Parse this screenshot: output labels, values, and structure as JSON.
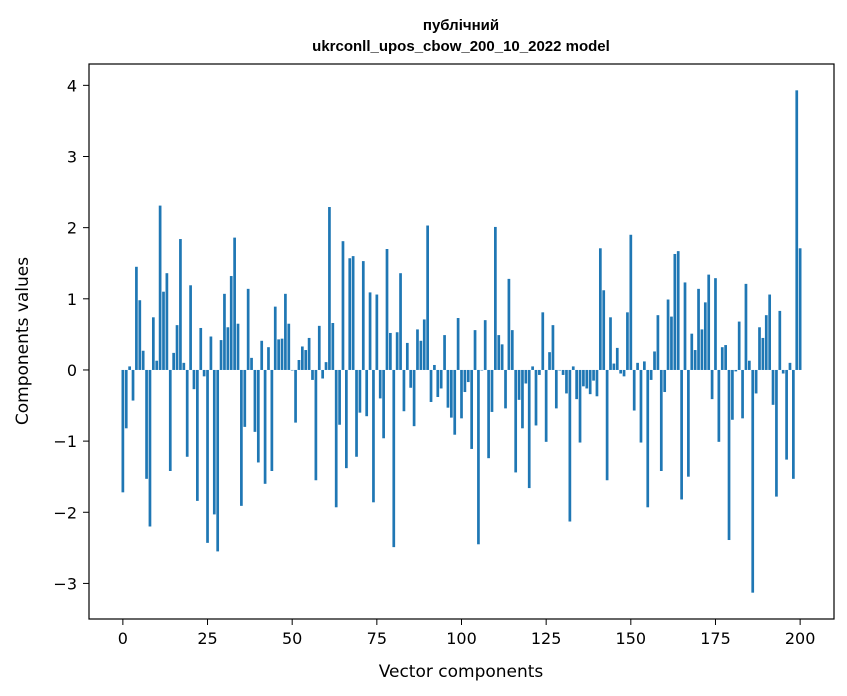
{
  "chart_data": {
    "type": "bar",
    "title_lines": [
      "публічний",
      "ukrconll_upos_cbow_200_10_2022 model"
    ],
    "xlabel": "Vector components",
    "ylabel": "Components values",
    "xlim": [
      -10,
      210
    ],
    "ylim": [
      -3.5,
      4.3
    ],
    "xticks": [
      0,
      25,
      50,
      75,
      100,
      125,
      150,
      175,
      200
    ],
    "yticks": [
      -3,
      -2,
      -1,
      0,
      1,
      2,
      3,
      4
    ],
    "bar_color": "#1f77b4",
    "grid": false,
    "x": "0..199",
    "values": [
      -1.72,
      -0.82,
      0.05,
      -0.43,
      1.45,
      0.98,
      0.27,
      -1.53,
      -2.2,
      0.74,
      0.13,
      2.31,
      1.1,
      1.36,
      -1.42,
      0.24,
      0.63,
      1.84,
      0.1,
      -1.22,
      1.19,
      -0.27,
      -1.84,
      0.59,
      -0.09,
      -2.43,
      0.47,
      -2.03,
      -2.55,
      0.42,
      1.07,
      0.6,
      1.32,
      1.86,
      0.65,
      -1.91,
      -0.8,
      1.14,
      0.17,
      -0.87,
      -1.3,
      0.41,
      -1.6,
      0.32,
      -1.42,
      0.89,
      0.43,
      0.44,
      1.07,
      0.65,
      0.0,
      -0.74,
      0.14,
      0.33,
      0.28,
      0.45,
      -0.14,
      -1.55,
      0.62,
      -0.12,
      0.11,
      2.29,
      0.66,
      -1.93,
      -0.77,
      1.81,
      -1.38,
      1.57,
      1.6,
      -1.22,
      -0.6,
      1.53,
      -0.65,
      1.09,
      -1.86,
      1.06,
      -0.4,
      -0.96,
      1.7,
      0.52,
      -2.49,
      0.53,
      1.36,
      -0.58,
      0.38,
      -0.25,
      -0.79,
      0.57,
      0.41,
      0.71,
      2.03,
      -0.45,
      0.07,
      -0.38,
      -0.26,
      0.49,
      -0.53,
      -0.67,
      -0.91,
      0.73,
      -0.68,
      -0.31,
      -0.17,
      -1.11,
      0.56,
      -2.45,
      0.0,
      0.7,
      -1.24,
      -0.59,
      2.01,
      0.49,
      0.36,
      -0.54,
      1.28,
      0.56,
      -1.44,
      -0.42,
      -0.82,
      -0.19,
      -1.66,
      0.05,
      -0.78,
      -0.07,
      0.81,
      -1.01,
      0.25,
      0.63,
      -0.54,
      0.0,
      -0.07,
      -0.33,
      -2.13,
      0.05,
      -0.41,
      -1.02,
      -0.23,
      -0.26,
      -0.34,
      -0.15,
      -0.37,
      1.71,
      1.12,
      -1.55,
      0.74,
      0.09,
      0.31,
      -0.05,
      -0.09,
      0.81,
      1.9,
      -0.57,
      0.1,
      -1.02,
      0.12,
      -1.93,
      -0.14,
      0.26,
      0.77,
      -1.42,
      -0.31,
      0.99,
      0.75,
      1.63,
      1.67,
      -1.82,
      1.23,
      -1.5,
      0.51,
      0.28,
      1.14,
      0.57,
      0.95,
      1.34,
      -0.41,
      1.29,
      -1.01,
      0.32,
      0.35,
      -2.39,
      -0.7,
      -0.02,
      0.68,
      -0.68,
      1.21,
      0.13,
      -3.13,
      -0.33,
      0.6,
      0.45,
      0.77,
      1.06,
      -0.49,
      -1.78,
      0.83,
      -0.05,
      -1.26,
      0.1,
      -1.53,
      3.93,
      1.71
    ]
  }
}
